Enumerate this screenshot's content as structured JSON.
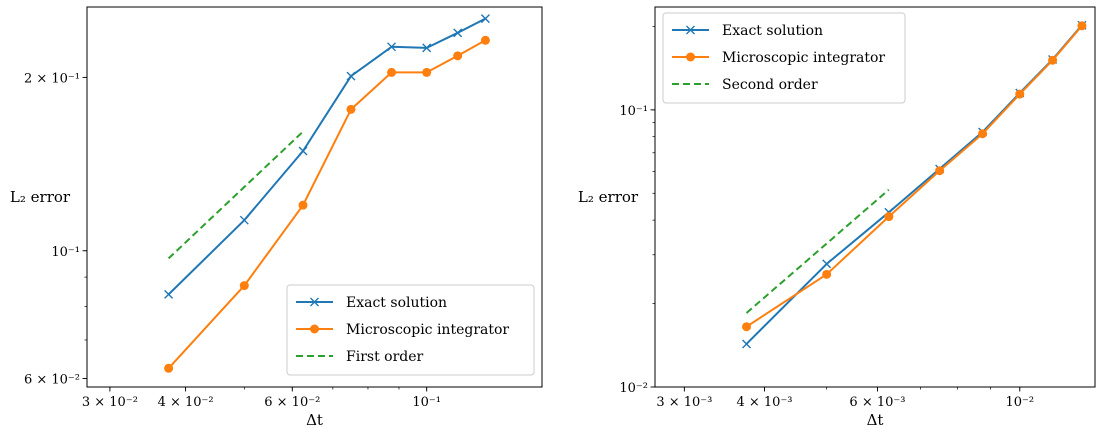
{
  "chart_data": [
    {
      "type": "line",
      "xlabel": "Δt",
      "ylabel": "L₂ error",
      "xscale": "log",
      "yscale": "log",
      "xlim": [
        0.0275,
        0.155
      ],
      "ylim": [
        0.058,
        0.265
      ],
      "x_ticks": [
        {
          "value": 0.03,
          "label": "3 × 10⁻²"
        },
        {
          "value": 0.04,
          "label": "4 × 10⁻²"
        },
        {
          "value": 0.06,
          "label": "6 × 10⁻²"
        },
        {
          "value": 0.1,
          "label": "10⁻¹"
        }
      ],
      "y_ticks": [
        {
          "value": 0.06,
          "label": "6 × 10⁻²"
        },
        {
          "value": 0.1,
          "label": "10⁻¹"
        },
        {
          "value": 0.2,
          "label": "2 × 10⁻¹"
        }
      ],
      "legend_position": "lower right",
      "series": [
        {
          "name": "Exact solution",
          "color": "#1f77b4",
          "marker": "x",
          "linestyle": "solid",
          "x": [
            0.0375,
            0.05,
            0.0625,
            0.075,
            0.0875,
            0.1,
            0.1125,
            0.125
          ],
          "y": [
            0.084,
            0.113,
            0.149,
            0.201,
            0.226,
            0.225,
            0.239,
            0.253
          ]
        },
        {
          "name": "Microscopic integrator",
          "color": "#ff7f0e",
          "marker": "o",
          "linestyle": "solid",
          "x": [
            0.0375,
            0.05,
            0.0625,
            0.075,
            0.0875,
            0.1,
            0.1125,
            0.125
          ],
          "y": [
            0.0625,
            0.087,
            0.12,
            0.176,
            0.204,
            0.204,
            0.218,
            0.232
          ]
        },
        {
          "name": "First order",
          "color": "#2ca02c",
          "marker": "none",
          "linestyle": "dashed",
          "x": [
            0.0375,
            0.0625
          ],
          "y": [
            0.097,
            0.161
          ]
        }
      ]
    },
    {
      "type": "line",
      "xlabel": "Δt",
      "ylabel": "L₂ error",
      "xscale": "log",
      "yscale": "log",
      "xlim": [
        0.0027,
        0.0131
      ],
      "ylim": [
        0.01,
        0.235
      ],
      "x_ticks": [
        {
          "value": 0.003,
          "label": "3 × 10⁻³"
        },
        {
          "value": 0.004,
          "label": "4 × 10⁻³"
        },
        {
          "value": 0.006,
          "label": "6 × 10⁻³"
        },
        {
          "value": 0.01,
          "label": "10⁻²"
        }
      ],
      "y_ticks": [
        {
          "value": 0.01,
          "label": "10⁻²"
        },
        {
          "value": 0.1,
          "label": "10⁻¹"
        }
      ],
      "legend_position": "upper left",
      "series": [
        {
          "name": "Exact solution",
          "color": "#1f77b4",
          "marker": "x",
          "linestyle": "solid",
          "x": [
            0.00375,
            0.005,
            0.00625,
            0.0075,
            0.00875,
            0.01,
            0.01125,
            0.0125
          ],
          "y": [
            0.0143,
            0.0278,
            0.0427,
            0.0612,
            0.0832,
            0.115,
            0.152,
            0.202
          ]
        },
        {
          "name": "Microscopic integrator",
          "color": "#ff7f0e",
          "marker": "o",
          "linestyle": "solid",
          "x": [
            0.00375,
            0.005,
            0.00625,
            0.0075,
            0.00875,
            0.01,
            0.01125,
            0.0125
          ],
          "y": [
            0.0165,
            0.0255,
            0.0412,
            0.0603,
            0.082,
            0.114,
            0.151,
            0.201
          ]
        },
        {
          "name": "Second order",
          "color": "#2ca02c",
          "marker": "none",
          "linestyle": "dashed",
          "x": [
            0.00375,
            0.00625
          ],
          "y": [
            0.0185,
            0.0515
          ]
        }
      ]
    }
  ]
}
